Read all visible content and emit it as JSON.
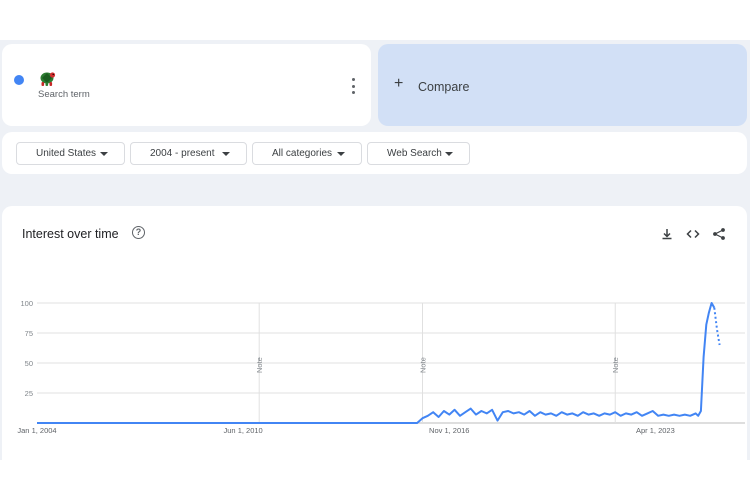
{
  "search_term": {
    "emoji": "turtle-emoji",
    "dot_color": "#4285f4",
    "sub_label": "Search term"
  },
  "compare": {
    "plus": "+",
    "label": "Compare"
  },
  "filters": [
    {
      "label": "United States"
    },
    {
      "label": "2004 - present"
    },
    {
      "label": "All categories"
    },
    {
      "label": "Web Search"
    }
  ],
  "chart": {
    "title": "Interest over time",
    "help_icon": "?",
    "tools": [
      "download-icon",
      "embed-code-icon",
      "share-icon"
    ]
  },
  "chart_data": {
    "type": "line",
    "x_ticks": [
      "Jan 1, 2004",
      "Jun 1, 2010",
      "Nov 1, 2016",
      "Apr 1, 2023"
    ],
    "y_ticks": [
      100,
      75,
      50,
      25
    ],
    "ylim": [
      0,
      100
    ],
    "xlim": [
      "2004-01",
      "2025-06"
    ],
    "notes": [
      {
        "date": "2010-12",
        "text": "Note"
      },
      {
        "date": "2016-01",
        "text": "Note"
      },
      {
        "date": "2022-01",
        "text": "Note"
      }
    ],
    "series": [
      {
        "color": "#4285f4",
        "points": [
          [
            "2004-01",
            0
          ],
          [
            "2015-10",
            0
          ],
          [
            "2015-11",
            0
          ],
          [
            "2016-01",
            4
          ],
          [
            "2016-03",
            6
          ],
          [
            "2016-05",
            9
          ],
          [
            "2016-07",
            5
          ],
          [
            "2016-09",
            10
          ],
          [
            "2016-11",
            7
          ],
          [
            "2017-01",
            11
          ],
          [
            "2017-03",
            6
          ],
          [
            "2017-05",
            9
          ],
          [
            "2017-07",
            12
          ],
          [
            "2017-09",
            7
          ],
          [
            "2017-11",
            10
          ],
          [
            "2018-01",
            8
          ],
          [
            "2018-03",
            11
          ],
          [
            "2018-05",
            2
          ],
          [
            "2018-07",
            9
          ],
          [
            "2018-09",
            10
          ],
          [
            "2018-11",
            8
          ],
          [
            "2019-01",
            9
          ],
          [
            "2019-03",
            7
          ],
          [
            "2019-05",
            10
          ],
          [
            "2019-07",
            6
          ],
          [
            "2019-09",
            9
          ],
          [
            "2019-11",
            7
          ],
          [
            "2020-01",
            8
          ],
          [
            "2020-03",
            6
          ],
          [
            "2020-05",
            9
          ],
          [
            "2020-07",
            7
          ],
          [
            "2020-09",
            8
          ],
          [
            "2020-11",
            6
          ],
          [
            "2021-01",
            9
          ],
          [
            "2021-03",
            7
          ],
          [
            "2021-05",
            8
          ],
          [
            "2021-07",
            6
          ],
          [
            "2021-09",
            8
          ],
          [
            "2021-11",
            7
          ],
          [
            "2022-01",
            9
          ],
          [
            "2022-03",
            6
          ],
          [
            "2022-05",
            8
          ],
          [
            "2022-07",
            7
          ],
          [
            "2022-09",
            9
          ],
          [
            "2022-11",
            6
          ],
          [
            "2023-01",
            8
          ],
          [
            "2023-03",
            10
          ],
          [
            "2023-05",
            6
          ],
          [
            "2023-07",
            7
          ],
          [
            "2023-09",
            6
          ],
          [
            "2023-11",
            7
          ],
          [
            "2024-01",
            6
          ],
          [
            "2024-03",
            7
          ],
          [
            "2024-05",
            6
          ],
          [
            "2024-07",
            8
          ],
          [
            "2024-08",
            6
          ],
          [
            "2024-09",
            10
          ],
          [
            "2024-10",
            55
          ],
          [
            "2024-11",
            82
          ],
          [
            "2024-12",
            92
          ],
          [
            "2025-01",
            100
          ],
          [
            "2025-02",
            96
          ]
        ]
      }
    ],
    "partial_segment": [
      [
        "2025-02",
        96
      ],
      [
        "2025-03",
        78
      ],
      [
        "2025-04",
        65
      ]
    ],
    "grid": true
  }
}
